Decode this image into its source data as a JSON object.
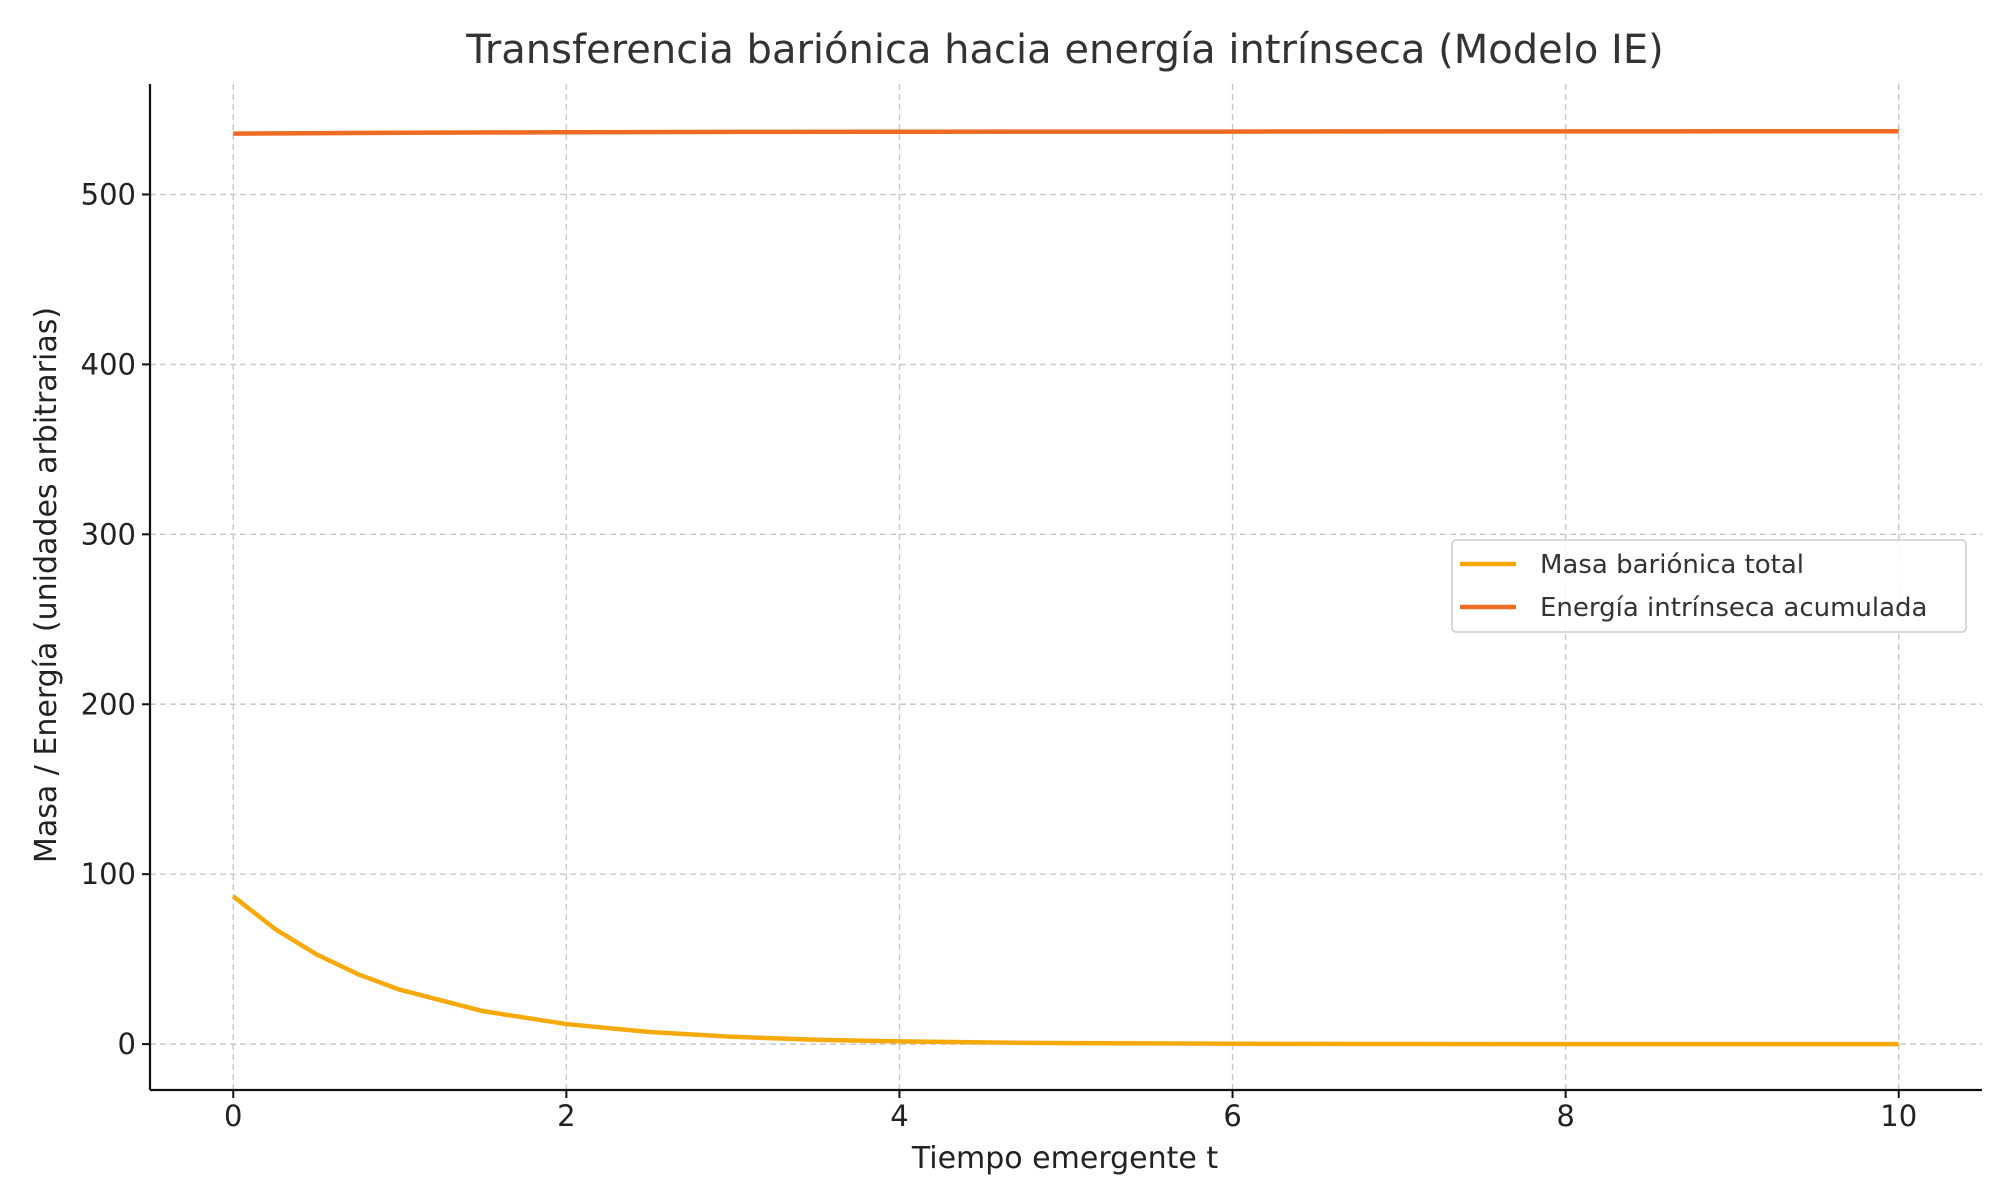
{
  "chart_data": {
    "type": "line",
    "title": "Transferencia bariónica hacia energía intrínseca (Modelo IE)",
    "xlabel": "Tiempo emergente t",
    "ylabel": "Masa / Energía (unidades arbitrarias)",
    "xlim": [
      -0.5,
      10.5
    ],
    "ylim": [
      -27,
      565
    ],
    "xticks": [
      0,
      2,
      4,
      6,
      8,
      10
    ],
    "yticks": [
      0,
      100,
      200,
      300,
      400,
      500
    ],
    "grid": true,
    "legend_position": "center-right",
    "series": [
      {
        "name": "Masa bariónica total",
        "color": "#f7a90a",
        "x": [
          0,
          0.25,
          0.5,
          0.75,
          1,
          1.5,
          2,
          2.5,
          3,
          3.5,
          4,
          4.5,
          5,
          6,
          7,
          8,
          9,
          10
        ],
        "y": [
          87,
          67.8,
          52.8,
          41.1,
          32,
          19.4,
          11.8,
          7.1,
          4.3,
          2.6,
          1.6,
          1.0,
          0.6,
          0.2,
          0.1,
          0,
          0,
          0
        ]
      },
      {
        "name": "Energía intrínseca acumulada",
        "color": "#ef6a22",
        "x": [
          0,
          1,
          2,
          3,
          4,
          5,
          6,
          7,
          8,
          9,
          10
        ],
        "y": [
          535.8,
          536.3,
          536.6,
          536.8,
          536.9,
          537.0,
          537.0,
          537.1,
          537.1,
          537.2,
          537.2
        ]
      }
    ]
  }
}
